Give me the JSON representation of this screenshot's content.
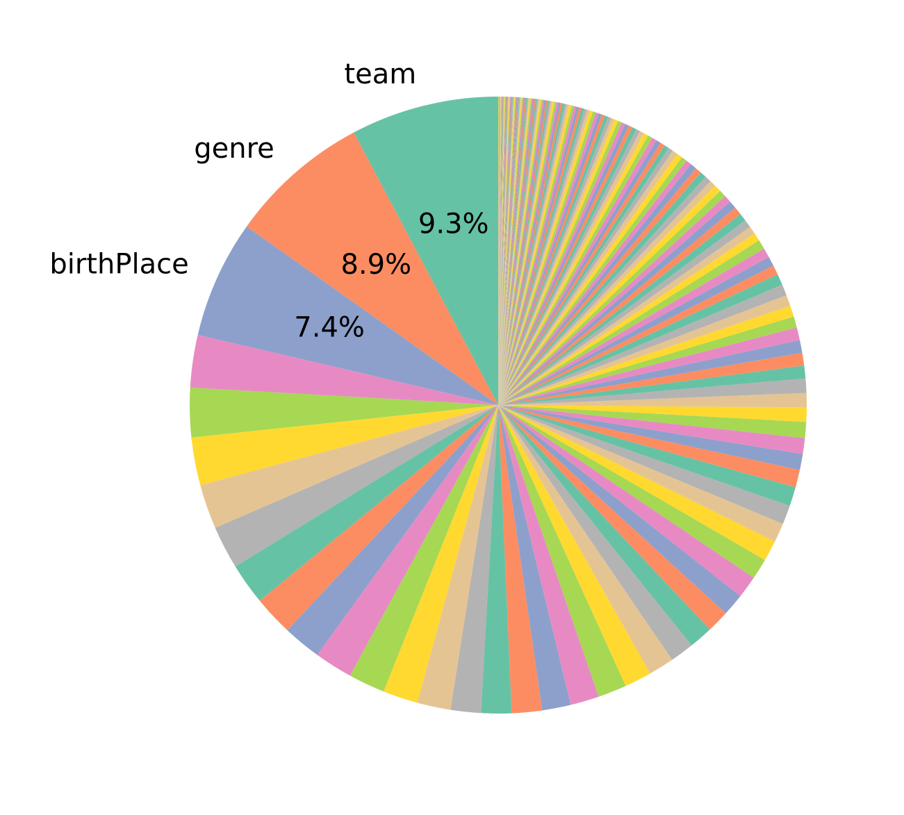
{
  "chart_data": {
    "type": "pie",
    "title": "",
    "start_angle_deg": 90,
    "direction": "counterclockwise",
    "labeled_slices": [
      {
        "label": "team",
        "value": 9.3,
        "pct_text": "9.3%"
      },
      {
        "label": "genre",
        "value": 8.9,
        "pct_text": "8.9%"
      },
      {
        "label": "birthPlace",
        "value": 7.4,
        "pct_text": "7.4%"
      }
    ],
    "unlabeled_values": [
      3.3,
      3.1,
      3.0,
      2.8,
      2.7,
      2.6,
      2.5,
      2.4,
      2.4,
      2.3,
      2.2,
      2.1,
      1.9,
      1.9,
      1.9,
      1.8,
      1.8,
      1.8,
      1.7,
      1.6,
      1.5,
      1.5,
      1.4,
      1.4,
      1.4,
      1.3,
      1.3,
      1.2,
      1.2,
      1.2,
      1.1,
      1.0,
      1.0,
      1.0,
      0.9,
      0.9,
      0.9,
      0.8,
      0.8,
      0.8,
      0.8,
      0.7,
      0.7,
      0.7,
      0.7,
      0.7,
      0.6,
      0.6,
      0.6,
      0.6,
      0.5,
      0.5,
      0.5,
      0.5,
      0.5,
      0.5,
      0.45,
      0.45,
      0.45,
      0.4,
      0.4,
      0.4,
      0.4,
      0.4,
      0.35,
      0.35,
      0.35,
      0.35,
      0.3,
      0.3,
      0.3,
      0.3,
      0.3,
      0.3,
      0.28,
      0.28,
      0.26,
      0.26,
      0.25,
      0.25,
      0.24,
      0.24,
      0.23,
      0.22,
      0.22,
      0.21,
      0.2,
      0.2,
      0.2,
      0.19,
      0.19,
      0.18,
      0.18,
      0.17,
      0.17,
      0.16,
      0.16,
      0.15,
      0.15,
      0.15,
      0.14,
      0.14,
      0.13,
      0.13,
      0.12,
      0.12,
      0.12,
      0.11,
      0.11,
      0.1,
      0.1,
      0.1,
      0.1,
      0.09,
      0.09,
      0.09,
      0.09,
      0.08,
      0.08,
      0.08,
      0.08,
      0.08,
      0.07,
      0.07,
      0.07,
      0.07,
      0.07,
      0.06,
      0.06,
      0.06,
      0.06,
      0.06,
      0.06,
      0.05,
      0.05,
      0.05,
      0.05,
      0.05,
      0.05,
      0.05,
      0.05,
      0.04,
      0.04,
      0.04,
      0.04,
      0.04,
      0.04,
      0.04,
      0.04,
      0.04,
      0.04,
      0.03,
      0.03,
      0.03,
      0.03,
      0.03,
      0.03,
      0.03,
      0.03,
      0.03,
      0.03,
      0.02,
      0.02,
      0.02,
      0.02,
      0.02,
      0.02,
      0.02,
      0.02,
      0.02,
      0.02
    ],
    "colors": [
      "#66c2a5",
      "#fc8d62",
      "#8da0cb",
      "#e78ac3",
      "#a6d854",
      "#ffd92f",
      "#e5c494",
      "#b3b3b3"
    ]
  }
}
